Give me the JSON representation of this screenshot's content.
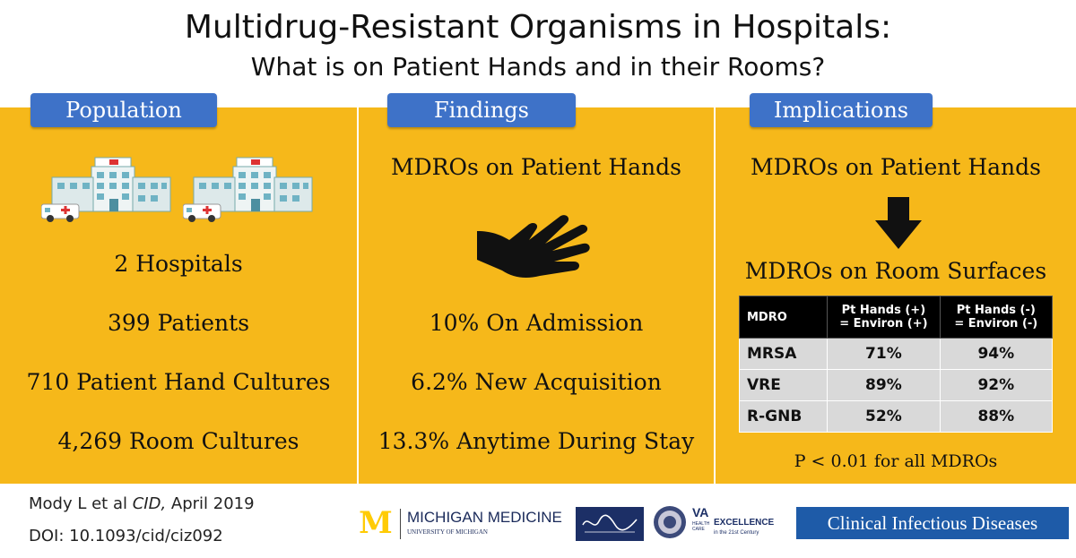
{
  "title": {
    "main": "Multidrug-Resistant Organisms in Hospitals:",
    "sub": "What is on Patient Hands and in their Rooms?"
  },
  "population": {
    "header": "Population",
    "stats": [
      "2  Hospitals",
      "399  Patients",
      "710  Patient Hand Cultures",
      "4,269  Room Cultures"
    ]
  },
  "findings": {
    "header": "Findings",
    "heading": "MDROs on Patient Hands",
    "stats": [
      "10% On Admission",
      "6.2% New Acquisition",
      "13.3% Anytime During Stay"
    ]
  },
  "implications": {
    "header": "Implications",
    "top": "MDROs on Patient Hands",
    "bottom": "MDROs on Room Surfaces",
    "table": {
      "headers": [
        "MDRO",
        "Pt Hands (+)",
        "= Environ (+)",
        "Pt Hands (-)",
        "= Environ (-)"
      ],
      "rows": [
        [
          "MRSA",
          "71%",
          "94%"
        ],
        [
          "VRE",
          "89%",
          "92%"
        ],
        [
          "R-GNB",
          "52%",
          "88%"
        ]
      ]
    },
    "note": "P < 0.01 for all MDROs"
  },
  "footer": {
    "citation_author": "Mody L et al ",
    "citation_journal": "CID,",
    "citation_date": " April 2019",
    "doi": "DOI: 10.1093/cid/ciz092",
    "logos": {
      "michigan_m": "M",
      "michigan": "MICHIGAN MEDICINE",
      "michigan_sub": "UNIVERSITY OF MICHIGAN",
      "va": "VA",
      "va_care": "HEALTH CARE",
      "va_excellence": "EXCELLENCE",
      "va_tagline": "in the 21st Century",
      "cid": "Clinical Infectious Diseases"
    }
  },
  "colors": {
    "panel": "#F6B81A",
    "header_blue": "#3E72C8",
    "cid_blue": "#1E5BA8",
    "michigan_yellow": "#FFCB05"
  }
}
